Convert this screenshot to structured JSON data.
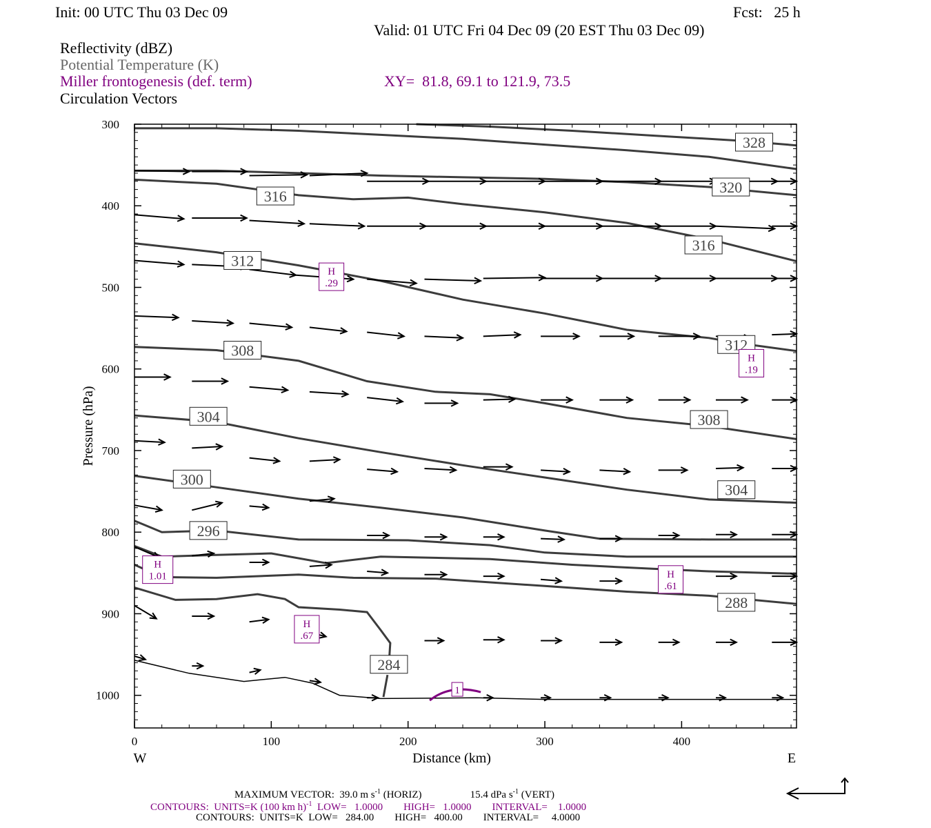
{
  "header": {
    "init": "Init: 00 UTC Thu 03 Dec 09",
    "fcst": "Fcst:   25 h",
    "valid": "Valid: 01 UTC Fri 04 Dec 09 (20 EST Thu 03 Dec 09)"
  },
  "fields": {
    "reflectivity": "Reflectivity (dBZ)",
    "theta": "Potential Temperature (K)",
    "miller": "Miller frontogenesis (def. term)",
    "xy": "XY=  81.8, 69.1 to 121.9, 73.5",
    "vectors": "Circulation Vectors"
  },
  "footer": {
    "max_vector": "MAXIMUM VECTOR:  39.0 m s",
    "max_vector_sup": "-1",
    "max_vector_horiz": " (HORIZ)",
    "max_vector_vert": "15.4 dPa s",
    "max_vector_vert_sup": "-1",
    "max_vector_vert_tail": " (VERT)",
    "contours1_a": "CONTOURS:  UNITS=K (100 km h)",
    "contours1_sup": "-1",
    "contours1_b": "  LOW=   1.0000        HIGH=   1.0000        INTERVAL=    1.0000",
    "contours2": "CONTOURS:  UNITS=K  LOW=   284.00        HIGH=   400.00        INTERVAL=     4.0000"
  },
  "colors": {
    "theta": "#3c3c3c",
    "miller": "#800080",
    "axes": "#000000"
  },
  "chart_data": {
    "type": "cross-section",
    "xlabel": "Distance (km)",
    "ylabel": "Pressure (hPa)",
    "xlim": [
      0,
      484
    ],
    "ylim": [
      1040,
      300
    ],
    "x_ticks": [
      0,
      100,
      200,
      300,
      400
    ],
    "y_ticks": [
      300,
      400,
      500,
      600,
      700,
      800,
      900,
      1000
    ],
    "left_end": "W",
    "right_end": "E",
    "theta_contours": [
      {
        "label": "",
        "points": [
          [
            0,
            305
          ],
          [
            60,
            305
          ],
          [
            120,
            308
          ],
          [
            180,
            313
          ],
          [
            240,
            318
          ],
          [
            300,
            325
          ],
          [
            360,
            332
          ],
          [
            420,
            340
          ],
          [
            484,
            355
          ]
        ]
      },
      {
        "label": "328",
        "labels": [
          [
            453,
            322
          ]
        ],
        "points": [
          [
            206,
            300
          ],
          [
            260,
            303
          ],
          [
            320,
            308
          ],
          [
            380,
            314
          ],
          [
            440,
            320
          ],
          [
            484,
            326
          ]
        ]
      },
      {
        "label": "320",
        "labels": [
          [
            436,
            377
          ]
        ],
        "points": [
          [
            0,
            357
          ],
          [
            60,
            357
          ],
          [
            120,
            360
          ],
          [
            180,
            363
          ],
          [
            240,
            365
          ],
          [
            300,
            367
          ],
          [
            360,
            371
          ],
          [
            420,
            377
          ],
          [
            484,
            387
          ]
        ]
      },
      {
        "label": "316",
        "labels": [
          [
            103,
            388
          ],
          [
            416,
            448
          ]
        ],
        "points": [
          [
            0,
            368
          ],
          [
            60,
            373
          ],
          [
            120,
            387
          ],
          [
            160,
            392
          ],
          [
            200,
            390
          ],
          [
            240,
            398
          ],
          [
            300,
            408
          ],
          [
            360,
            421
          ],
          [
            420,
            441
          ],
          [
            484,
            468
          ]
        ]
      },
      {
        "label": "312",
        "labels": [
          [
            79,
            467
          ],
          [
            440,
            570
          ]
        ],
        "points": [
          [
            0,
            446
          ],
          [
            60,
            457
          ],
          [
            120,
            473
          ],
          [
            180,
            492
          ],
          [
            240,
            515
          ],
          [
            300,
            532
          ],
          [
            360,
            552
          ],
          [
            420,
            562
          ],
          [
            440,
            568
          ],
          [
            484,
            578
          ]
        ]
      },
      {
        "label": "308",
        "labels": [
          [
            79,
            577
          ],
          [
            420,
            662
          ]
        ],
        "points": [
          [
            0,
            573
          ],
          [
            60,
            577
          ],
          [
            120,
            590
          ],
          [
            170,
            615
          ],
          [
            220,
            628
          ],
          [
            260,
            631
          ],
          [
            300,
            642
          ],
          [
            360,
            660
          ],
          [
            420,
            670
          ],
          [
            484,
            686
          ]
        ]
      },
      {
        "label": "304",
        "labels": [
          [
            54,
            658
          ],
          [
            440,
            748
          ]
        ],
        "points": [
          [
            0,
            657
          ],
          [
            60,
            665
          ],
          [
            120,
            685
          ],
          [
            180,
            702
          ],
          [
            240,
            718
          ],
          [
            300,
            733
          ],
          [
            360,
            748
          ],
          [
            420,
            760
          ],
          [
            484,
            764
          ]
        ]
      },
      {
        "label": "300",
        "labels": [
          [
            42,
            735
          ]
        ],
        "points": [
          [
            0,
            731
          ],
          [
            60,
            745
          ],
          [
            120,
            759
          ],
          [
            180,
            770
          ],
          [
            240,
            782
          ],
          [
            300,
            798
          ],
          [
            340,
            808
          ],
          [
            420,
            809
          ],
          [
            484,
            809
          ]
        ]
      },
      {
        "label": "296",
        "labels": [
          [
            54,
            798
          ]
        ],
        "points": [
          [
            0,
            786
          ],
          [
            20,
            800
          ],
          [
            60,
            798
          ],
          [
            120,
            809
          ],
          [
            200,
            810
          ],
          [
            260,
            816
          ],
          [
            300,
            825
          ],
          [
            360,
            830
          ],
          [
            420,
            830
          ],
          [
            484,
            830
          ]
        ]
      },
      {
        "label": "",
        "points": [
          [
            0,
            817
          ],
          [
            20,
            830
          ],
          [
            60,
            828
          ],
          [
            100,
            826
          ],
          [
            140,
            838
          ],
          [
            180,
            830
          ],
          [
            260,
            833
          ],
          [
            320,
            840
          ],
          [
            380,
            845
          ],
          [
            420,
            848
          ],
          [
            484,
            851
          ]
        ]
      },
      {
        "label": "",
        "points": [
          [
            0,
            840
          ],
          [
            20,
            855
          ],
          [
            60,
            856
          ],
          [
            120,
            852
          ],
          [
            160,
            856
          ],
          [
            220,
            857
          ],
          [
            300,
            866
          ],
          [
            360,
            873
          ],
          [
            420,
            878
          ],
          [
            484,
            888
          ]
        ]
      },
      {
        "label": "288",
        "labels": [
          [
            440,
            886
          ]
        ]
      },
      {
        "label": "284",
        "labels": [
          [
            186,
            962
          ]
        ],
        "points": [
          [
            0,
            868
          ],
          [
            30,
            883
          ],
          [
            60,
            882
          ],
          [
            90,
            876
          ],
          [
            110,
            882
          ],
          [
            120,
            892
          ],
          [
            150,
            895
          ],
          [
            170,
            898
          ],
          [
            180,
            920
          ],
          [
            187,
            936
          ],
          [
            186,
            962
          ]
        ]
      },
      {
        "label": "",
        "points": [
          [
            185,
            975
          ],
          [
            182,
            1002
          ]
        ]
      }
    ],
    "terrain": [
      [
        0,
        957
      ],
      [
        40,
        973
      ],
      [
        80,
        983
      ],
      [
        110,
        978
      ],
      [
        130,
        985
      ],
      [
        150,
        1000
      ],
      [
        180,
        1004
      ],
      [
        250,
        1003
      ],
      [
        300,
        1005
      ],
      [
        400,
        1005
      ],
      [
        484,
        1005
      ]
    ],
    "frontogenesis_maxima": [
      {
        "label": "H",
        "value": ".29",
        "x": 144,
        "p": 487
      },
      {
        "label": "H",
        "value": ".19",
        "x": 451,
        "p": 593
      },
      {
        "label": "H",
        "value": "1.01",
        "x": 17,
        "p": 846
      },
      {
        "label": "H",
        "value": ".61",
        "x": 392,
        "p": 858
      },
      {
        "label": "H",
        "value": ".67",
        "x": 126,
        "p": 919
      },
      {
        "label": "1",
        "value": "",
        "x": 236,
        "p": 991
      }
    ],
    "vectors": [
      [
        0,
        357,
        40,
        358
      ],
      [
        42,
        358,
        82,
        358
      ],
      [
        84,
        363,
        126,
        362
      ],
      [
        128,
        363,
        170,
        360
      ],
      [
        170,
        370,
        215,
        370
      ],
      [
        212,
        370,
        257,
        370
      ],
      [
        255,
        370,
        300,
        370
      ],
      [
        297,
        370,
        342,
        370
      ],
      [
        340,
        370,
        385,
        370
      ],
      [
        383,
        370,
        425,
        370
      ],
      [
        425,
        370,
        470,
        370
      ],
      [
        466,
        370,
        484,
        370
      ],
      [
        0,
        411,
        36,
        416
      ],
      [
        42,
        415,
        82,
        415
      ],
      [
        84,
        418,
        124,
        422
      ],
      [
        128,
        422,
        168,
        425
      ],
      [
        170,
        425,
        213,
        425
      ],
      [
        212,
        425,
        257,
        425
      ],
      [
        255,
        425,
        300,
        425
      ],
      [
        297,
        425,
        342,
        425
      ],
      [
        340,
        425,
        385,
        425
      ],
      [
        383,
        425,
        425,
        425
      ],
      [
        425,
        425,
        468,
        428
      ],
      [
        466,
        425,
        484,
        425
      ],
      [
        0,
        467,
        36,
        472
      ],
      [
        42,
        472,
        82,
        475
      ],
      [
        84,
        478,
        118,
        485
      ],
      [
        118,
        485,
        160,
        490
      ],
      [
        170,
        490,
        206,
        495
      ],
      [
        212,
        490,
        253,
        492
      ],
      [
        255,
        489,
        300,
        488
      ],
      [
        297,
        489,
        342,
        489
      ],
      [
        340,
        489,
        385,
        489
      ],
      [
        383,
        489,
        425,
        489
      ],
      [
        425,
        489,
        470,
        489
      ],
      [
        466,
        489,
        484,
        489
      ],
      [
        0,
        535,
        32,
        537
      ],
      [
        42,
        541,
        72,
        544
      ],
      [
        84,
        544,
        115,
        549
      ],
      [
        128,
        549,
        155,
        554
      ],
      [
        170,
        555,
        197,
        560
      ],
      [
        212,
        560,
        240,
        562
      ],
      [
        255,
        560,
        282,
        558
      ],
      [
        297,
        560,
        325,
        560
      ],
      [
        340,
        560,
        365,
        560
      ],
      [
        383,
        560,
        413,
        560
      ],
      [
        425,
        560,
        450,
        562
      ],
      [
        466,
        558,
        484,
        557
      ],
      [
        0,
        610,
        26,
        610
      ],
      [
        42,
        615,
        68,
        615
      ],
      [
        84,
        622,
        112,
        626
      ],
      [
        128,
        628,
        156,
        631
      ],
      [
        170,
        635,
        196,
        640
      ],
      [
        212,
        642,
        236,
        642
      ],
      [
        255,
        638,
        278,
        637
      ],
      [
        297,
        638,
        320,
        638
      ],
      [
        340,
        638,
        364,
        638
      ],
      [
        383,
        638,
        406,
        638
      ],
      [
        425,
        638,
        448,
        638
      ],
      [
        466,
        638,
        484,
        638
      ],
      [
        0,
        688,
        22,
        690
      ],
      [
        42,
        697,
        64,
        695
      ],
      [
        84,
        709,
        106,
        713
      ],
      [
        128,
        713,
        150,
        711
      ],
      [
        170,
        723,
        192,
        726
      ],
      [
        212,
        722,
        235,
        724
      ],
      [
        255,
        720,
        276,
        720
      ],
      [
        297,
        724,
        318,
        726
      ],
      [
        340,
        724,
        362,
        726
      ],
      [
        383,
        724,
        404,
        724
      ],
      [
        425,
        722,
        445,
        721
      ],
      [
        466,
        722,
        484,
        722
      ],
      [
        0,
        767,
        20,
        773
      ],
      [
        42,
        773,
        64,
        764
      ],
      [
        84,
        768,
        98,
        770
      ],
      [
        128,
        762,
        146,
        759
      ],
      [
        170,
        804,
        186,
        804
      ],
      [
        212,
        806,
        228,
        806
      ],
      [
        255,
        806,
        270,
        806
      ],
      [
        297,
        808,
        314,
        809
      ],
      [
        340,
        808,
        356,
        808
      ],
      [
        383,
        804,
        398,
        804
      ],
      [
        425,
        803,
        440,
        803
      ],
      [
        466,
        803,
        484,
        803
      ],
      [
        0,
        818,
        18,
        831
      ],
      [
        42,
        829,
        58,
        826
      ],
      [
        84,
        837,
        98,
        837
      ],
      [
        128,
        842,
        144,
        840
      ],
      [
        170,
        848,
        185,
        850
      ],
      [
        212,
        852,
        228,
        852
      ],
      [
        255,
        854,
        270,
        854
      ],
      [
        297,
        858,
        312,
        860
      ],
      [
        340,
        860,
        356,
        860
      ],
      [
        383,
        856,
        398,
        856
      ],
      [
        425,
        854,
        440,
        854
      ],
      [
        466,
        854,
        484,
        854
      ],
      [
        0,
        890,
        16,
        906
      ],
      [
        42,
        903,
        58,
        903
      ],
      [
        84,
        910,
        98,
        907
      ],
      [
        128,
        923,
        140,
        928
      ],
      [
        212,
        933,
        226,
        933
      ],
      [
        255,
        932,
        270,
        932
      ],
      [
        297,
        933,
        312,
        933
      ],
      [
        340,
        935,
        356,
        935
      ],
      [
        383,
        935,
        398,
        935
      ],
      [
        425,
        935,
        440,
        935
      ],
      [
        466,
        935,
        484,
        935
      ],
      [
        0,
        952,
        8,
        956
      ],
      [
        42,
        964,
        50,
        964
      ],
      [
        84,
        972,
        92,
        969
      ],
      [
        128,
        982,
        136,
        984
      ],
      [
        170,
        1003,
        178,
        1003
      ],
      [
        255,
        1003,
        262,
        1003
      ],
      [
        297,
        1003,
        304,
        1003
      ],
      [
        340,
        1003,
        348,
        1003
      ],
      [
        383,
        1003,
        390,
        1003
      ],
      [
        425,
        1003,
        432,
        1003
      ],
      [
        466,
        1003,
        474,
        1003
      ]
    ]
  }
}
